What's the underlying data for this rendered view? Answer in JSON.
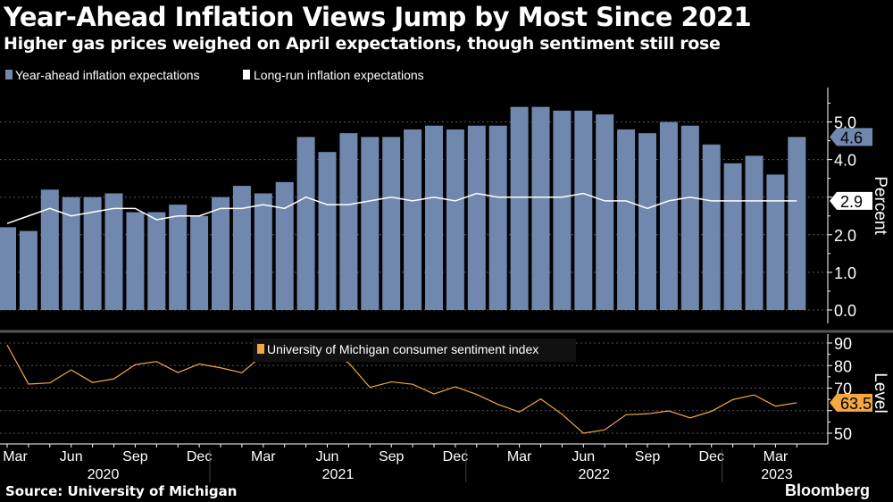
{
  "title": "Year-Ahead Inflation Views Jump by Most Since 2021",
  "subtitle": "Higher gas prices weighed on April expectations, though sentiment still rose",
  "source": "Source: University of Michigan",
  "brand": "Bloomberg",
  "colors": {
    "bars": "#7088ad",
    "long_run": "#ffffff",
    "sentiment": "#f5a742",
    "background": "#000000"
  },
  "chart_data": [
    {
      "type": "bar",
      "ylabel": "Percent",
      "ylim": [
        0,
        5.5
      ],
      "yticks": [
        "0.0",
        "1.0",
        "2.0",
        "4.0",
        "5.0"
      ],
      "grid": true,
      "legend": "top-left",
      "x": [
        "2020-03",
        "2020-04",
        "2020-05",
        "2020-06",
        "2020-07",
        "2020-08",
        "2020-09",
        "2020-10",
        "2020-11",
        "2020-12",
        "2021-01",
        "2021-02",
        "2021-03",
        "2021-04",
        "2021-05",
        "2021-06",
        "2021-07",
        "2021-08",
        "2021-09",
        "2021-10",
        "2021-11",
        "2021-12",
        "2022-01",
        "2022-02",
        "2022-03",
        "2022-04",
        "2022-05",
        "2022-06",
        "2022-07",
        "2022-08",
        "2022-09",
        "2022-10",
        "2022-11",
        "2022-12",
        "2023-01",
        "2023-02",
        "2023-03",
        "2023-04"
      ],
      "series": [
        {
          "name": "Year-ahead inflation expectations",
          "type": "bar",
          "last_label": "4.6",
          "values": [
            2.2,
            2.1,
            3.2,
            3.0,
            3.0,
            3.1,
            2.6,
            2.6,
            2.8,
            2.5,
            3.0,
            3.3,
            3.1,
            3.4,
            4.6,
            4.2,
            4.7,
            4.6,
            4.6,
            4.8,
            4.9,
            4.8,
            4.9,
            4.9,
            5.4,
            5.4,
            5.3,
            5.3,
            5.2,
            4.8,
            4.7,
            5.0,
            4.9,
            4.4,
            3.9,
            4.1,
            3.6,
            4.6
          ]
        },
        {
          "name": "Long-run inflation expectations",
          "type": "line",
          "last_label": "2.9",
          "values": [
            2.3,
            2.5,
            2.7,
            2.5,
            2.6,
            2.7,
            2.7,
            2.4,
            2.5,
            2.5,
            2.7,
            2.7,
            2.8,
            2.7,
            3.0,
            2.8,
            2.8,
            2.9,
            3.0,
            2.9,
            3.0,
            2.9,
            3.1,
            3.0,
            3.0,
            3.0,
            3.0,
            3.1,
            2.9,
            2.9,
            2.7,
            2.9,
            3.0,
            2.9,
            2.9,
            2.9,
            2.9,
            2.9
          ]
        }
      ]
    },
    {
      "type": "line",
      "ylabel": "Level",
      "ylim": [
        46,
        92
      ],
      "yticks": [
        "50",
        "70",
        "80",
        "90"
      ],
      "grid": true,
      "legend": "top-center",
      "xtick_labels": [
        "Mar",
        "Jun",
        "Sep",
        "Dec",
        "Mar",
        "Jun",
        "Sep",
        "Dec",
        "Mar",
        "Jun",
        "Sep",
        "Dec",
        "Mar"
      ],
      "year_labels": [
        "2020",
        "2021",
        "2022",
        "2023"
      ],
      "series": [
        {
          "name": "University of Michigan consumer sentiment index",
          "last_label": "63.5",
          "values": [
            89.1,
            71.8,
            72.3,
            78.1,
            72.5,
            74.1,
            80.4,
            81.8,
            76.9,
            80.7,
            79.0,
            76.8,
            84.9,
            88.3,
            82.9,
            85.5,
            81.2,
            70.3,
            72.8,
            71.7,
            67.4,
            70.6,
            67.2,
            62.8,
            59.4,
            65.2,
            58.4,
            50.0,
            51.5,
            58.2,
            58.6,
            59.9,
            56.8,
            59.7,
            64.9,
            67.0,
            62.0,
            63.5
          ]
        }
      ]
    }
  ]
}
